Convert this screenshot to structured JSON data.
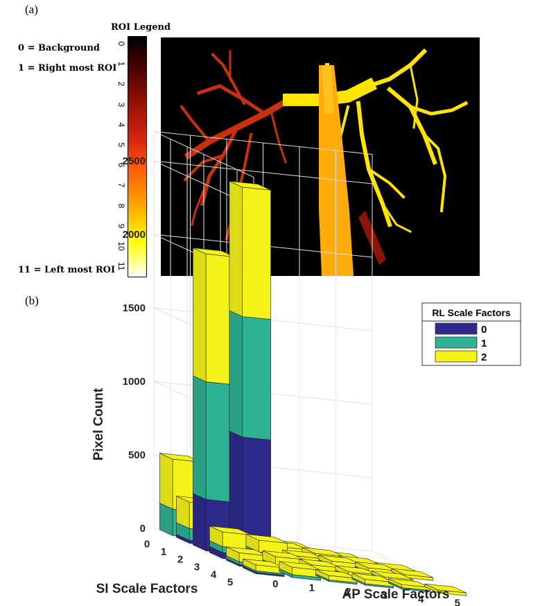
{
  "panel_a": {
    "label": "(a)",
    "legend_title": "ROI Legend",
    "note_background": "0 = Background",
    "note_right": "1 = Right most ROI",
    "note_left": "11 = Left most ROI",
    "colorbar_ticks": [
      "0",
      "1",
      "2",
      "3",
      "4",
      "5",
      "6",
      "7",
      "8",
      "9",
      "10",
      "11"
    ],
    "image_description_colors": [
      "#000000",
      "#c83010",
      "#ffe000",
      "#ffa500"
    ]
  },
  "panel_b": {
    "label": "(b)"
  },
  "chart_data": {
    "type": "bar",
    "subtype": "3d-stacked-bar",
    "xlabel": "AP Scale Factors",
    "ylabel": "SI Scale Factors",
    "zlabel": "Pixel Count",
    "x_ticks": [
      "0",
      "1",
      "2",
      "3",
      "4",
      "5"
    ],
    "y_ticks": [
      "0",
      "1",
      "2",
      "3",
      "4",
      "5"
    ],
    "z_ticks": [
      "0",
      "500",
      "1000",
      "1500",
      "2000",
      "2500"
    ],
    "zlim": [
      0,
      2700
    ],
    "legend_title": "RL Scale Factors",
    "series": [
      {
        "name": "0",
        "color": "#2e2a8c"
      },
      {
        "name": "1",
        "color": "#2fb294"
      },
      {
        "name": "2",
        "color": "#f3f31a"
      }
    ],
    "bars": [
      {
        "si": 0,
        "ap": 0,
        "values": [
          0,
          180,
          340
        ]
      },
      {
        "si": 0,
        "ap": 1,
        "values": [
          0,
          120,
          280
        ]
      },
      {
        "si": 0,
        "ap": 2,
        "values": [
          0,
          0,
          20
        ]
      },
      {
        "si": 0,
        "ap": 3,
        "values": [
          0,
          0,
          10
        ]
      },
      {
        "si": 1,
        "ap": 0,
        "values": [
          20,
          80,
          180
        ]
      },
      {
        "si": 1,
        "ap": 1,
        "values": [
          10,
          40,
          150
        ]
      },
      {
        "si": 1,
        "ap": 2,
        "values": [
          0,
          20,
          30
        ]
      },
      {
        "si": 1,
        "ap": 3,
        "values": [
          0,
          0,
          20
        ]
      },
      {
        "si": 1,
        "ap": 4,
        "values": [
          0,
          0,
          10
        ]
      },
      {
        "si": 2,
        "ap": 0,
        "values": [
          350,
          800,
          870
        ]
      },
      {
        "si": 2,
        "ap": 1,
        "values": [
          800,
          820,
          880
        ]
      },
      {
        "si": 2,
        "ap": 2,
        "values": [
          10,
          30,
          40
        ]
      },
      {
        "si": 2,
        "ap": 3,
        "values": [
          10,
          20,
          30
        ]
      },
      {
        "si": 2,
        "ap": 4,
        "values": [
          0,
          10,
          20
        ]
      },
      {
        "si": 2,
        "ap": 5,
        "values": [
          0,
          0,
          10
        ]
      },
      {
        "si": 3,
        "ap": 0,
        "values": [
          40,
          40,
          100
        ]
      },
      {
        "si": 3,
        "ap": 1,
        "values": [
          10,
          60,
          80
        ]
      },
      {
        "si": 3,
        "ap": 2,
        "values": [
          10,
          20,
          40
        ]
      },
      {
        "si": 3,
        "ap": 3,
        "values": [
          10,
          20,
          30
        ]
      },
      {
        "si": 3,
        "ap": 4,
        "values": [
          0,
          10,
          30
        ]
      },
      {
        "si": 3,
        "ap": 5,
        "values": [
          0,
          0,
          20
        ]
      },
      {
        "si": 4,
        "ap": 0,
        "values": [
          10,
          20,
          60
        ]
      },
      {
        "si": 4,
        "ap": 1,
        "values": [
          10,
          20,
          60
        ]
      },
      {
        "si": 4,
        "ap": 2,
        "values": [
          0,
          20,
          40
        ]
      },
      {
        "si": 4,
        "ap": 3,
        "values": [
          0,
          10,
          30
        ]
      },
      {
        "si": 4,
        "ap": 4,
        "values": [
          0,
          10,
          20
        ]
      },
      {
        "si": 5,
        "ap": 0,
        "values": [
          10,
          10,
          40
        ]
      },
      {
        "si": 5,
        "ap": 1,
        "values": [
          0,
          20,
          50
        ]
      },
      {
        "si": 5,
        "ap": 2,
        "values": [
          0,
          10,
          30
        ]
      },
      {
        "si": 5,
        "ap": 3,
        "values": [
          0,
          10,
          30
        ]
      },
      {
        "si": 5,
        "ap": 4,
        "values": [
          0,
          10,
          20
        ]
      },
      {
        "si": 5,
        "ap": 5,
        "values": [
          0,
          0,
          20
        ]
      }
    ]
  }
}
